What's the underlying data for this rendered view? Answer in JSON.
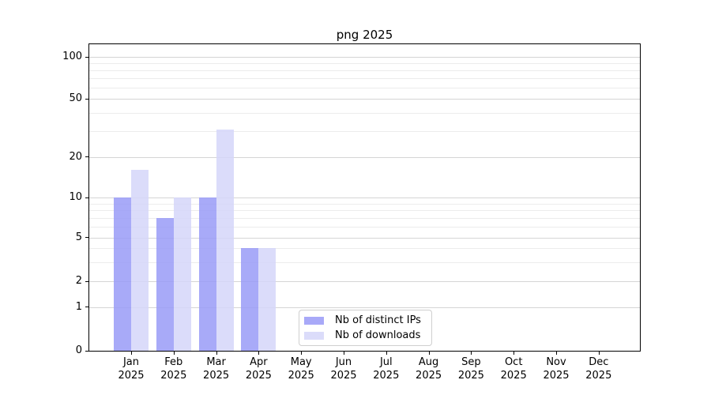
{
  "title": "png 2025",
  "legend": {
    "items": [
      {
        "label": "Nb of distinct IPs",
        "color": "#a8a9f8"
      },
      {
        "label": "Nb of downloads",
        "color": "#dbdcfa"
      }
    ]
  },
  "chart_data": {
    "type": "bar",
    "title": "png 2025",
    "categories": [
      "Jan",
      "Feb",
      "Mar",
      "Apr",
      "May",
      "Jun",
      "Jul",
      "Aug",
      "Sep",
      "Oct",
      "Nov",
      "Dec"
    ],
    "category_year": "2025",
    "series": [
      {
        "name": "Nb of distinct IPs",
        "color": "#a8a9f8",
        "bar_fill": "rgba(153,155,247,0.85)",
        "values": [
          10,
          7,
          10,
          4,
          0,
          0,
          0,
          0,
          0,
          0,
          0,
          0
        ]
      },
      {
        "name": "Nb of downloads",
        "color": "#dbdcfa",
        "bar_fill": "rgba(213,214,249,0.85)",
        "values": [
          16,
          10,
          31,
          4,
          0,
          0,
          0,
          0,
          0,
          0,
          0,
          0
        ]
      }
    ],
    "xlabel": "",
    "ylabel": "",
    "y_ticks": [
      0,
      1,
      2,
      5,
      10,
      20,
      50,
      100
    ],
    "y_minor_gridlines": [
      3,
      4,
      6,
      7,
      8,
      9,
      30,
      40,
      60,
      70,
      80,
      90
    ],
    "scale": "log above 1, linear 0-1",
    "ylim": [
      0,
      123
    ],
    "grid": true,
    "legend_position": "lower center"
  }
}
